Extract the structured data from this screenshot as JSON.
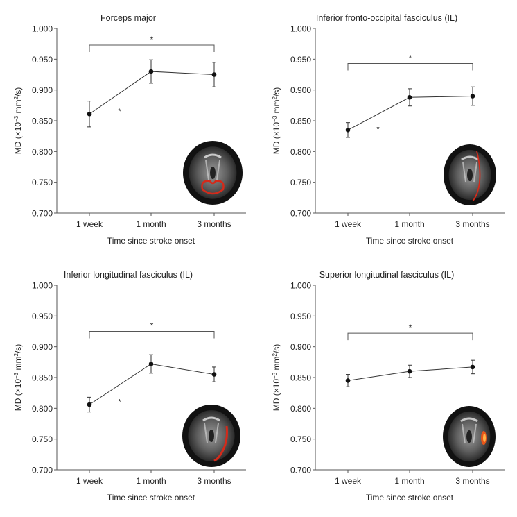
{
  "chart_data": [
    {
      "type": "line",
      "title": "Forceps major",
      "xlabel": "Time since stroke onset",
      "ylabel_prefix": "MD (×10",
      "ylabel_exp": "−3",
      "ylabel_unit": " mm",
      "ylabel_unit_exp": "2",
      "ylabel_suffix": "/s)",
      "categories": [
        "1 week",
        "1 month",
        "3 months"
      ],
      "values": [
        0.861,
        0.93,
        0.925
      ],
      "errors": [
        0.021,
        0.019,
        0.02
      ],
      "ylim": [
        0.7,
        1.0
      ],
      "yticks": [
        "0.700",
        "0.750",
        "0.800",
        "0.850",
        "0.900",
        "0.950",
        "1.000"
      ],
      "bracket_y": 0.973,
      "bracket_label": "*",
      "mid_label": "*",
      "mid_label_y": 0.866,
      "inset": "brain-axial-forceps-major"
    },
    {
      "type": "line",
      "title": "Inferior fronto-occipital fasciculus (IL)",
      "xlabel": "Time since stroke onset",
      "ylabel_prefix": "MD (×10",
      "ylabel_exp": "−3",
      "ylabel_unit": " mm",
      "ylabel_unit_exp": "2",
      "ylabel_suffix": "/s)",
      "categories": [
        "1 week",
        "1 month",
        "3 months"
      ],
      "values": [
        0.835,
        0.888,
        0.89
      ],
      "errors": [
        0.012,
        0.014,
        0.015
      ],
      "ylim": [
        0.7,
        1.0
      ],
      "yticks": [
        "0.700",
        "0.750",
        "0.800",
        "0.850",
        "0.900",
        "0.950",
        "1.000"
      ],
      "bracket_y": 0.943,
      "bracket_label": "*",
      "mid_label": "*",
      "mid_label_y": 0.837,
      "inset": "brain-axial-ifof"
    },
    {
      "type": "line",
      "title": "Inferior longitudinal fasciculus (IL)",
      "xlabel": "Time since stroke onset",
      "ylabel_prefix": "MD (×10",
      "ylabel_exp": "−3",
      "ylabel_unit": " mm",
      "ylabel_unit_exp": "2",
      "ylabel_suffix": "/s)",
      "categories": [
        "1 week",
        "1 month",
        "3 months"
      ],
      "values": [
        0.806,
        0.872,
        0.855
      ],
      "errors": [
        0.012,
        0.015,
        0.012
      ],
      "ylim": [
        0.7,
        1.0
      ],
      "yticks": [
        "0.700",
        "0.750",
        "0.800",
        "0.850",
        "0.900",
        "0.950",
        "1.000"
      ],
      "bracket_y": 0.925,
      "bracket_label": "*",
      "mid_label": "*",
      "mid_label_y": 0.811,
      "inset": "brain-axial-ilf"
    },
    {
      "type": "line",
      "title": "Superior longitudinal fasciculus (IL)",
      "xlabel": "Time since stroke onset",
      "ylabel_prefix": "MD (×10",
      "ylabel_exp": "−3",
      "ylabel_unit": " mm",
      "ylabel_unit_exp": "2",
      "ylabel_suffix": "/s)",
      "categories": [
        "1 week",
        "1 month",
        "3 months"
      ],
      "values": [
        0.845,
        0.86,
        0.867
      ],
      "errors": [
        0.01,
        0.01,
        0.011
      ],
      "ylim": [
        0.7,
        1.0
      ],
      "yticks": [
        "0.700",
        "0.750",
        "0.800",
        "0.850",
        "0.900",
        "0.950",
        "1.000"
      ],
      "bracket_y": 0.922,
      "bracket_label": "*",
      "mid_label": "",
      "mid_label_y": 0.85,
      "inset": "brain-axial-slf"
    }
  ],
  "colors": {
    "line": "#333333",
    "marker": "#111111",
    "axis": "#555555",
    "brain_bg": "#2a2a2a",
    "tract": "#d42a1a"
  }
}
